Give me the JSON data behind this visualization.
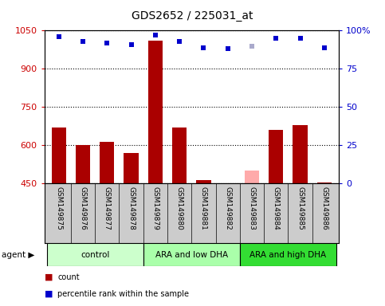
{
  "title": "GDS2652 / 225031_at",
  "samples": [
    "GSM149875",
    "GSM149876",
    "GSM149877",
    "GSM149878",
    "GSM149879",
    "GSM149880",
    "GSM149881",
    "GSM149882",
    "GSM149883",
    "GSM149884",
    "GSM149885",
    "GSM149886"
  ],
  "counts": [
    670,
    600,
    615,
    570,
    1010,
    670,
    465,
    445,
    500,
    660,
    680,
    455
  ],
  "ranks": [
    96,
    93,
    92,
    91,
    97,
    93,
    89,
    88,
    90,
    95,
    95,
    89
  ],
  "count_bar_colors": [
    "#aa0000",
    "#aa0000",
    "#aa0000",
    "#aa0000",
    "#aa0000",
    "#aa0000",
    "#aa0000",
    "#aa0000",
    "#ffaaaa",
    "#aa0000",
    "#aa0000",
    "#aa0000"
  ],
  "rank_colors": [
    "#0000cc",
    "#0000cc",
    "#0000cc",
    "#0000cc",
    "#0000cc",
    "#0000cc",
    "#0000cc",
    "#0000cc",
    "#aaaacc",
    "#0000cc",
    "#0000cc",
    "#0000cc"
  ],
  "groups": [
    {
      "label": "control",
      "start": 0,
      "end": 3,
      "color": "#ccffcc"
    },
    {
      "label": "ARA and low DHA",
      "start": 4,
      "end": 7,
      "color": "#aaffaa"
    },
    {
      "label": "ARA and high DHA",
      "start": 8,
      "end": 11,
      "color": "#33dd33"
    }
  ],
  "ylim_left": [
    450,
    1050
  ],
  "ylim_right": [
    0,
    100
  ],
  "yticks_left": [
    450,
    600,
    750,
    900,
    1050
  ],
  "ytick_labels_left": [
    "450",
    "600",
    "750",
    "900",
    "1050"
  ],
  "yticks_right": [
    0,
    25,
    50,
    75,
    100
  ],
  "ytick_labels_right": [
    "0",
    "25",
    "50",
    "75",
    "100%"
  ],
  "left_color": "#cc0000",
  "right_color": "#0000cc",
  "sample_bg_color": "#cccccc",
  "plot_bg": "#ffffff",
  "bar_width": 0.6
}
